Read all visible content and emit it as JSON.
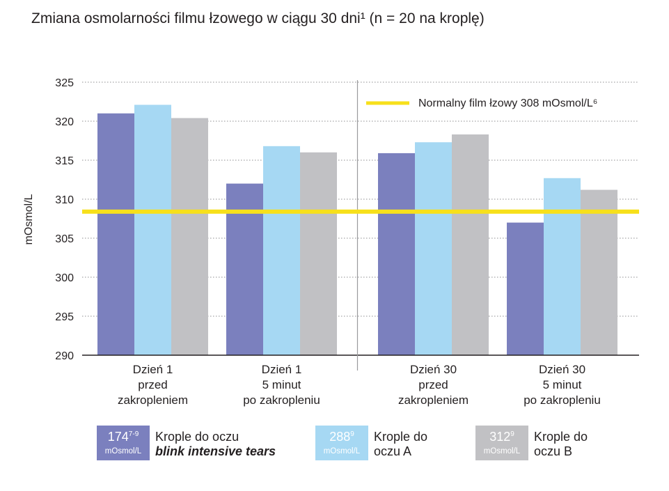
{
  "title": "Zmiana osmolarności filmu łzowego w ciągu 30 dni¹ (n = 20 na kroplę)",
  "chart_data": {
    "type": "bar",
    "ylabel": "mOsmol/L",
    "ylim": [
      290,
      325
    ],
    "yticks": [
      325,
      320,
      315,
      310,
      305,
      300,
      295,
      290
    ],
    "grid": true,
    "categories": [
      [
        "Dzień 1",
        "przed",
        "zakropleniem"
      ],
      [
        "Dzień 1",
        "5 minut",
        "po zakropleniu"
      ],
      [
        "Dzień 30",
        "przed",
        "zakropleniem"
      ],
      [
        "Dzień 30",
        "5 minut",
        "po zakropleniu"
      ]
    ],
    "series": [
      {
        "values": [
          321.0,
          312.0,
          315.9,
          307.0
        ],
        "color": "#7b80be"
      },
      {
        "values": [
          322.1,
          316.8,
          317.3,
          312.7
        ],
        "color": "#a6d8f3"
      },
      {
        "values": [
          320.4,
          316.0,
          318.3,
          311.2
        ],
        "color": "#c1c1c4"
      }
    ],
    "reference_line": {
      "value": 308.4,
      "label": "Normalny film łzowy 308 mOsmol/L⁶",
      "color": "#f7e01b"
    }
  },
  "legend": [
    {
      "value": "174",
      "sup": "7-9",
      "unit": "mOsmol/L",
      "line1": "Krople do oczu",
      "line2": "blink intensive tears",
      "color": "#7b80be"
    },
    {
      "value": "288",
      "sup": "9",
      "unit": "mOsmol/L",
      "line1": "Krople do",
      "line2": "oczu A",
      "color": "#a6d8f3"
    },
    {
      "value": "312",
      "sup": "9",
      "unit": "mOsmol/L",
      "line1": "Krople do",
      "line2": "oczu B",
      "color": "#c1c1c4"
    }
  ]
}
